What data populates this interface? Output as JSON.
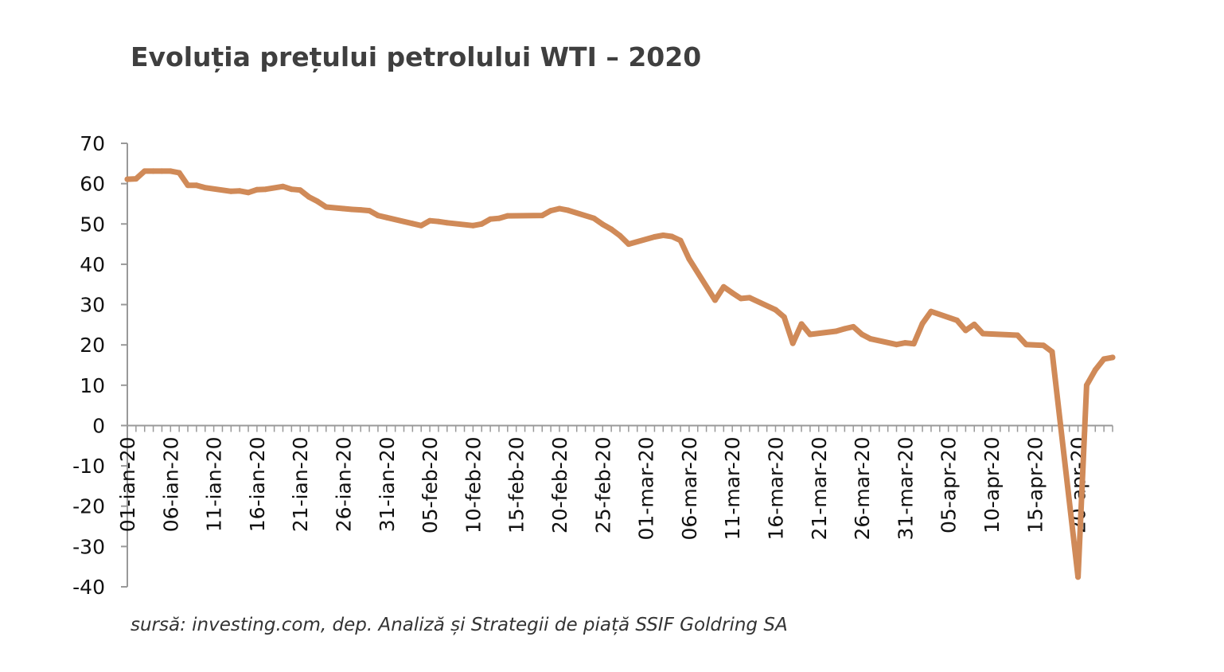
{
  "chart_data": {
    "type": "line",
    "title": "Evoluția prețului petrolului WTI – 2020",
    "source": "sursă: investing.com, dep. Analiză și Strategii de piață SSIF Goldring SA",
    "xlabel": "",
    "ylabel": "",
    "ylim": [
      -40,
      70
    ],
    "yticks": [
      70,
      60,
      50,
      40,
      30,
      20,
      10,
      0,
      -10,
      -20,
      -30,
      -40
    ],
    "xlim": [
      "2020-01-01",
      "2020-04-24"
    ],
    "xticks": [
      "01-ian-20",
      "06-ian-20",
      "11-ian-20",
      "16-ian-20",
      "21-ian-20",
      "26-ian-20",
      "31-ian-20",
      "05-feb-20",
      "10-feb-20",
      "15-feb-20",
      "20-feb-20",
      "25-feb-20",
      "01-mar-20",
      "06-mar-20",
      "11-mar-20",
      "16-mar-20",
      "21-mar-20",
      "26-mar-20",
      "31-mar-20",
      "05-apr-20",
      "10-apr-20",
      "15-apr-20",
      "20-apr-20"
    ],
    "grid": false,
    "legend": "none",
    "series": [
      {
        "color": "#d08a58",
        "points": [
          [
            "2020-01-01",
            61.1
          ],
          [
            "2020-01-02",
            61.2
          ],
          [
            "2020-01-03",
            63.1
          ],
          [
            "2020-01-04",
            63.1
          ],
          [
            "2020-01-05",
            63.1
          ],
          [
            "2020-01-06",
            63.1
          ],
          [
            "2020-01-07",
            62.7
          ],
          [
            "2020-01-08",
            59.6
          ],
          [
            "2020-01-09",
            59.6
          ],
          [
            "2020-01-10",
            59.0
          ],
          [
            "2020-01-13",
            58.1
          ],
          [
            "2020-01-14",
            58.2
          ],
          [
            "2020-01-15",
            57.8
          ],
          [
            "2020-01-16",
            58.5
          ],
          [
            "2020-01-17",
            58.6
          ],
          [
            "2020-01-19",
            59.3
          ],
          [
            "2020-01-20",
            58.6
          ],
          [
            "2020-01-21",
            58.4
          ],
          [
            "2020-01-22",
            56.7
          ],
          [
            "2020-01-23",
            55.6
          ],
          [
            "2020-01-24",
            54.2
          ],
          [
            "2020-01-26",
            53.8
          ],
          [
            "2020-01-27",
            53.6
          ],
          [
            "2020-01-28",
            53.5
          ],
          [
            "2020-01-29",
            53.3
          ],
          [
            "2020-01-30",
            52.1
          ],
          [
            "2020-01-31",
            51.6
          ],
          [
            "2020-02-03",
            50.1
          ],
          [
            "2020-02-04",
            49.6
          ],
          [
            "2020-02-05",
            50.8
          ],
          [
            "2020-02-06",
            50.6
          ],
          [
            "2020-02-07",
            50.3
          ],
          [
            "2020-02-10",
            49.6
          ],
          [
            "2020-02-11",
            50.0
          ],
          [
            "2020-02-12",
            51.2
          ],
          [
            "2020-02-13",
            51.4
          ],
          [
            "2020-02-14",
            52.0
          ],
          [
            "2020-02-18",
            52.1
          ],
          [
            "2020-02-19",
            53.3
          ],
          [
            "2020-02-20",
            53.8
          ],
          [
            "2020-02-21",
            53.4
          ],
          [
            "2020-02-24",
            51.4
          ],
          [
            "2020-02-25",
            49.9
          ],
          [
            "2020-02-26",
            48.7
          ],
          [
            "2020-02-27",
            47.1
          ],
          [
            "2020-02-28",
            45.0
          ],
          [
            "2020-03-02",
            46.8
          ],
          [
            "2020-03-03",
            47.2
          ],
          [
            "2020-03-04",
            46.9
          ],
          [
            "2020-03-05",
            45.9
          ],
          [
            "2020-03-06",
            41.3
          ],
          [
            "2020-03-09",
            31.1
          ],
          [
            "2020-03-10",
            34.4
          ],
          [
            "2020-03-11",
            32.9
          ],
          [
            "2020-03-12",
            31.5
          ],
          [
            "2020-03-13",
            31.7
          ],
          [
            "2020-03-16",
            28.7
          ],
          [
            "2020-03-17",
            26.9
          ],
          [
            "2020-03-18",
            20.4
          ],
          [
            "2020-03-19",
            25.2
          ],
          [
            "2020-03-20",
            22.6
          ],
          [
            "2020-03-23",
            23.4
          ],
          [
            "2020-03-24",
            24.0
          ],
          [
            "2020-03-25",
            24.5
          ],
          [
            "2020-03-26",
            22.6
          ],
          [
            "2020-03-27",
            21.5
          ],
          [
            "2020-03-30",
            20.1
          ],
          [
            "2020-03-31",
            20.5
          ],
          [
            "2020-04-01",
            20.3
          ],
          [
            "2020-04-02",
            25.3
          ],
          [
            "2020-04-03",
            28.3
          ],
          [
            "2020-04-06",
            26.1
          ],
          [
            "2020-04-07",
            23.6
          ],
          [
            "2020-04-08",
            25.1
          ],
          [
            "2020-04-09",
            22.8
          ],
          [
            "2020-04-13",
            22.4
          ],
          [
            "2020-04-14",
            20.1
          ],
          [
            "2020-04-16",
            19.9
          ],
          [
            "2020-04-17",
            18.3
          ],
          [
            "2020-04-20",
            -37.6
          ],
          [
            "2020-04-21",
            10.0
          ],
          [
            "2020-04-22",
            13.8
          ],
          [
            "2020-04-23",
            16.5
          ],
          [
            "2020-04-24",
            16.9
          ]
        ]
      }
    ]
  }
}
